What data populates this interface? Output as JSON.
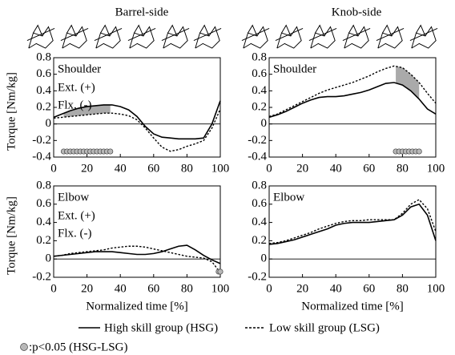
{
  "column_titles": [
    "Barrel-side",
    "Knob-side"
  ],
  "legend": {
    "marker_label": ":p<0.05 (HSG-LSG)",
    "marker_color": "#b8b8b8"
  },
  "chart_data": [
    {
      "type": "line",
      "label": "Shoulder",
      "annotations": [
        "Ext. (+)",
        "Flx. (-)"
      ],
      "ylabel": "Torque [Nm/kg]",
      "x": [
        0,
        5,
        10,
        15,
        20,
        25,
        30,
        35,
        40,
        45,
        50,
        55,
        60,
        65,
        70,
        75,
        80,
        85,
        90,
        95,
        100
      ],
      "xlim": [
        0,
        100
      ],
      "xticks": [
        0,
        20,
        40,
        60,
        80,
        100
      ],
      "ylim": [
        -0.4,
        0.8
      ],
      "yticks": [
        -0.4,
        -0.2,
        0,
        0.2,
        0.4,
        0.6,
        0.8
      ],
      "series": [
        {
          "name": "High skill group (HSG)",
          "color": "#000000",
          "style": "solid",
          "values": [
            0.08,
            0.12,
            0.16,
            0.19,
            0.21,
            0.22,
            0.23,
            0.23,
            0.21,
            0.17,
            0.09,
            -0.03,
            -0.12,
            -0.16,
            -0.17,
            -0.18,
            -0.18,
            -0.18,
            -0.17,
            0.0,
            0.28
          ]
        },
        {
          "name": "Low skill group (LSG)",
          "color": "#000000",
          "style": "dotted",
          "values": [
            0.07,
            0.08,
            0.09,
            0.1,
            0.11,
            0.12,
            0.13,
            0.13,
            0.12,
            0.1,
            0.05,
            -0.05,
            -0.17,
            -0.28,
            -0.33,
            -0.31,
            -0.27,
            -0.24,
            -0.2,
            -0.05,
            0.18
          ]
        }
      ],
      "significant_x": [
        6,
        8,
        10,
        12,
        14,
        16,
        18,
        20,
        22,
        24,
        26,
        28,
        30,
        32,
        34
      ],
      "shade_color": "#aaaaaa"
    },
    {
      "type": "line",
      "label": "Shoulder",
      "x": [
        0,
        5,
        10,
        15,
        20,
        25,
        30,
        35,
        40,
        45,
        50,
        55,
        60,
        65,
        70,
        75,
        80,
        85,
        90,
        95,
        100
      ],
      "xlim": [
        0,
        100
      ],
      "xticks": [
        0,
        20,
        40,
        60,
        80,
        100
      ],
      "ylim": [
        -0.4,
        0.8
      ],
      "yticks": [
        -0.4,
        -0.2,
        0,
        0.2,
        0.4,
        0.6,
        0.8
      ],
      "series": [
        {
          "name": "High skill group (HSG)",
          "color": "#000000",
          "style": "solid",
          "values": [
            0.08,
            0.11,
            0.15,
            0.2,
            0.25,
            0.29,
            0.32,
            0.33,
            0.33,
            0.34,
            0.36,
            0.38,
            0.41,
            0.45,
            0.49,
            0.5,
            0.47,
            0.4,
            0.3,
            0.18,
            0.12
          ]
        },
        {
          "name": "Low skill group (LSG)",
          "color": "#000000",
          "style": "dotted",
          "values": [
            0.09,
            0.12,
            0.17,
            0.22,
            0.27,
            0.32,
            0.37,
            0.41,
            0.44,
            0.47,
            0.5,
            0.54,
            0.58,
            0.63,
            0.67,
            0.7,
            0.68,
            0.6,
            0.5,
            0.37,
            0.25
          ]
        }
      ],
      "significant_x": [
        76,
        78,
        80,
        82,
        84,
        86,
        88,
        90
      ],
      "shade_color": "#aaaaaa"
    },
    {
      "type": "line",
      "label": "Elbow",
      "annotations": [
        "Ext. (+)",
        "Flx. (-)"
      ],
      "ylabel": "Torque [Nm/kg]",
      "xlabel": "Normalized time [%]",
      "x": [
        0,
        5,
        10,
        15,
        20,
        25,
        30,
        35,
        40,
        45,
        50,
        55,
        60,
        65,
        70,
        75,
        80,
        85,
        90,
        95,
        100
      ],
      "xlim": [
        0,
        100
      ],
      "xticks": [
        0,
        20,
        40,
        60,
        80,
        100
      ],
      "ylim": [
        -0.2,
        0.8
      ],
      "yticks": [
        -0.2,
        0,
        0.2,
        0.4,
        0.6,
        0.8
      ],
      "series": [
        {
          "name": "High skill group (HSG)",
          "color": "#000000",
          "style": "solid",
          "values": [
            0.03,
            0.04,
            0.05,
            0.06,
            0.07,
            0.08,
            0.08,
            0.08,
            0.07,
            0.06,
            0.05,
            0.05,
            0.06,
            0.08,
            0.11,
            0.14,
            0.15,
            0.1,
            0.04,
            -0.01,
            -0.05
          ]
        },
        {
          "name": "Low skill group (LSG)",
          "color": "#000000",
          "style": "dotted",
          "values": [
            0.03,
            0.04,
            0.06,
            0.07,
            0.08,
            0.09,
            0.1,
            0.12,
            0.13,
            0.14,
            0.14,
            0.13,
            0.11,
            0.09,
            0.07,
            0.05,
            0.03,
            0.02,
            0.01,
            -0.03,
            -0.15
          ]
        }
      ],
      "significant_x": [
        99,
        100
      ],
      "shade_color": "#aaaaaa"
    },
    {
      "type": "line",
      "label": "Elbow",
      "xlabel": "Normalized time [%]",
      "x": [
        0,
        5,
        10,
        15,
        20,
        25,
        30,
        35,
        40,
        45,
        50,
        55,
        60,
        65,
        70,
        75,
        80,
        85,
        90,
        95,
        100
      ],
      "xlim": [
        0,
        100
      ],
      "xticks": [
        0,
        20,
        40,
        60,
        80,
        100
      ],
      "ylim": [
        -0.2,
        0.8
      ],
      "yticks": [
        -0.2,
        0,
        0.2,
        0.4,
        0.6,
        0.8
      ],
      "series": [
        {
          "name": "High skill group (HSG)",
          "color": "#000000",
          "style": "solid",
          "values": [
            0.16,
            0.17,
            0.19,
            0.21,
            0.24,
            0.27,
            0.3,
            0.33,
            0.37,
            0.39,
            0.4,
            0.4,
            0.4,
            0.41,
            0.42,
            0.43,
            0.48,
            0.57,
            0.6,
            0.48,
            0.2
          ]
        },
        {
          "name": "Low skill group (LSG)",
          "color": "#000000",
          "style": "dotted",
          "values": [
            0.17,
            0.18,
            0.2,
            0.23,
            0.26,
            0.29,
            0.33,
            0.36,
            0.39,
            0.41,
            0.42,
            0.42,
            0.43,
            0.43,
            0.43,
            0.43,
            0.5,
            0.6,
            0.65,
            0.55,
            0.3
          ]
        }
      ]
    }
  ]
}
